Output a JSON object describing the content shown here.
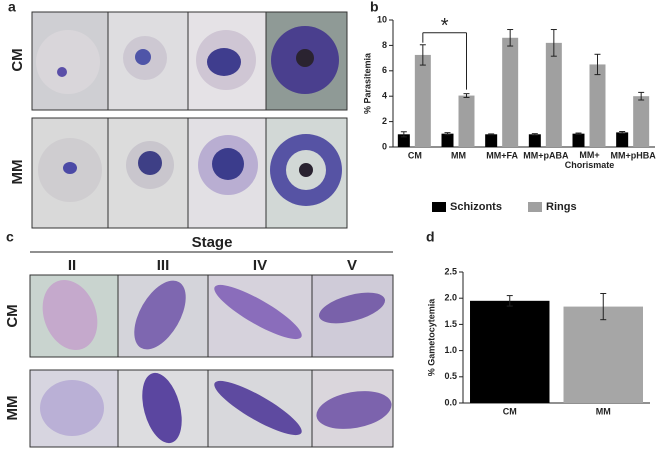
{
  "panel_labels": [
    "a",
    "b",
    "c",
    "d"
  ],
  "panel_a": {
    "rows": [
      "CM",
      "MM"
    ]
  },
  "panel_c": {
    "title": "Stage",
    "columns": [
      "II",
      "III",
      "IV",
      "V"
    ],
    "rows": [
      "CM",
      "MM"
    ]
  },
  "chart_data": [
    {
      "type": "bar",
      "ylabel": "% Parasitemia",
      "categories": [
        "CM",
        "MM",
        "MM+FA",
        "MM+pABA",
        "MM+\nChorismate",
        "MM+pHBA"
      ],
      "series": [
        {
          "name": "Schizonts",
          "color": "#000000",
          "values": [
            1.0,
            1.05,
            1.0,
            1.0,
            1.05,
            1.15
          ],
          "errors": [
            0.2,
            0.08,
            0.03,
            0.05,
            0.05,
            0.07
          ]
        },
        {
          "name": "Rings",
          "color": "#a0a0a0",
          "values": [
            7.25,
            4.05,
            8.6,
            8.2,
            6.5,
            4.0
          ],
          "errors": [
            0.8,
            0.15,
            0.65,
            1.05,
            0.8,
            0.3
          ]
        }
      ],
      "ylim": [
        0,
        10
      ],
      "yticks": [
        0,
        2,
        4,
        6,
        8,
        10
      ],
      "annotation": "*",
      "legend": "bottom"
    },
    {
      "type": "bar",
      "ylabel": "% Gametocytemia",
      "categories": [
        "CM",
        "MM"
      ],
      "values": [
        1.95,
        1.84
      ],
      "errors": [
        0.1,
        0.25
      ],
      "colors": [
        "#000000",
        "#a6a6a6"
      ],
      "ylim": [
        0,
        2.5
      ],
      "yticks": [
        {
          "value": 0,
          "label": "0.0"
        },
        0.5,
        {
          "value": 1,
          "label": "1.0"
        },
        1.5,
        {
          "value": 2,
          "label": "2.0"
        },
        2.5
      ]
    }
  ]
}
